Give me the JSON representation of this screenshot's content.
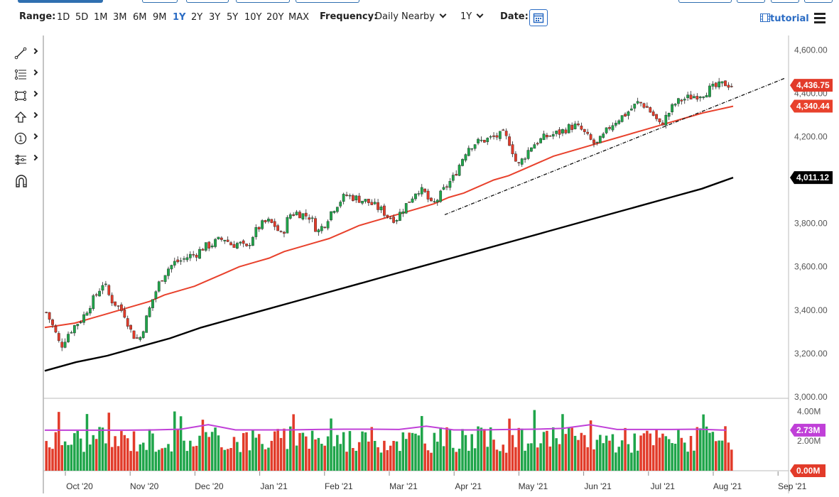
{
  "toolbar": {
    "range_label": "Range:",
    "ranges": [
      "1D",
      "5D",
      "1M",
      "3M",
      "6M",
      "9M",
      "1Y",
      "2Y",
      "3Y",
      "5Y",
      "10Y",
      "20Y",
      "MAX"
    ],
    "active_range": "1Y",
    "frequency_label": "Frequency:",
    "frequency_value": "Daily Nearby",
    "period_value": "1Y",
    "date_label": "Date:",
    "tutorial_label": "tutorial"
  },
  "tools": [
    "line-draw-icon",
    "fibonacci-icon",
    "rectangle-icon",
    "arrow-up-icon",
    "counter-icon",
    "measure-icon",
    "magnet-icon"
  ],
  "colors": {
    "up": "#1fa54a",
    "down": "#e23b2a",
    "ma50": "#e8412c",
    "ma200": "#000000",
    "volume_ma": "#c040d8",
    "accent": "#2b6cc4"
  },
  "chart_data": {
    "type": "candlestick",
    "price_axis": {
      "ylim": [
        3000,
        4650
      ],
      "ticks": [
        "4,600.00",
        "4,400.00",
        "4,200.00",
        "4,000.00",
        "3,800.00",
        "3,600.00",
        "3,400.00",
        "3,200.00",
        "3,000.00"
      ]
    },
    "x_labels": [
      "Oct '20",
      "Nov '20",
      "Dec '20",
      "Jan '21",
      "Feb '21",
      "Mar '21",
      "Apr '21",
      "May '21",
      "Jun '21",
      "Jul '21",
      "Aug '21",
      "Sep '21"
    ],
    "price_labels": {
      "last": "4,436.75",
      "ma50": "4,340.44",
      "ma200": "4,011.12"
    },
    "volume_axis": {
      "ticks": [
        "4.00M",
        "2.00M"
      ],
      "ma_label": "2.73M",
      "zero_label": "0.00M"
    },
    "close_path": [
      3390,
      3320,
      3230,
      3290,
      3330,
      3360,
      3420,
      3470,
      3530,
      3450,
      3420,
      3380,
      3290,
      3260,
      3360,
      3460,
      3540,
      3590,
      3620,
      3630,
      3650,
      3660,
      3690,
      3700,
      3720,
      3730,
      3700,
      3710,
      3680,
      3750,
      3790,
      3810,
      3790,
      3740,
      3840,
      3850,
      3840,
      3830,
      3760,
      3800,
      3860,
      3900,
      3930,
      3920,
      3910,
      3900,
      3880,
      3860,
      3830,
      3820,
      3870,
      3910,
      3960,
      3940,
      3880,
      3920,
      3970,
      4010,
      4080,
      4150,
      4170,
      4180,
      4190,
      4200,
      4210,
      4170,
      4060,
      4110,
      4160,
      4180,
      4200,
      4210,
      4220,
      4240,
      4250,
      4230,
      4190,
      4160,
      4200,
      4250,
      4280,
      4300,
      4330,
      4360,
      4340,
      4300,
      4250,
      4300,
      4350,
      4370,
      4380,
      4390,
      4400,
      4420,
      4430,
      4445,
      4436.75
    ],
    "ma50_path": [
      3320,
      3330,
      3340,
      3360,
      3380,
      3400,
      3420,
      3440,
      3470,
      3490,
      3510,
      3540,
      3570,
      3600,
      3620,
      3640,
      3670,
      3690,
      3710,
      3730,
      3760,
      3790,
      3810,
      3830,
      3850,
      3870,
      3890,
      3920,
      3940,
      3970,
      4000,
      4020,
      4050,
      4080,
      4110,
      4130,
      4150,
      4170,
      4190,
      4210,
      4230,
      4250,
      4270,
      4290,
      4310,
      4325,
      4340.44
    ],
    "ma200_path": [
      3120,
      3160,
      3190,
      3230,
      3270,
      3320,
      3360,
      3400,
      3440,
      3480,
      3520,
      3560,
      3600,
      3640,
      3680,
      3720,
      3760,
      3800,
      3840,
      3880,
      3920,
      3960,
      4011.12
    ],
    "trendline": {
      "from": [
        "Mar '21",
        3840
      ],
      "to": [
        "Sep '21",
        4450
      ]
    },
    "volume_ma_path": [
      2.73,
      2.73,
      2.73,
      2.73,
      2.75,
      2.8,
      3.1,
      2.75,
      2.75,
      2.75,
      2.78,
      2.8,
      2.8,
      2.78,
      3.0,
      2.75,
      2.75,
      2.78,
      2.8,
      2.85,
      3.1,
      2.78,
      2.78,
      2.78,
      2.8,
      2.73
    ]
  }
}
